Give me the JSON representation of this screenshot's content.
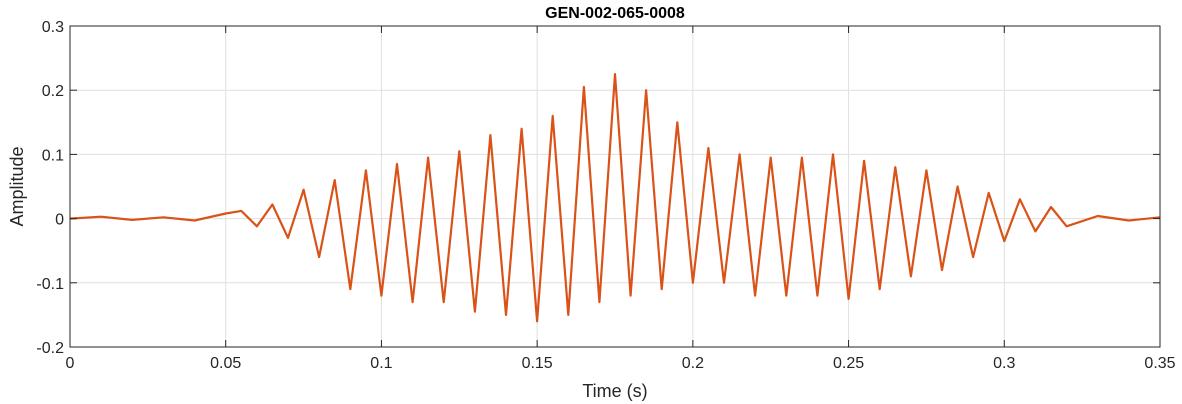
{
  "chart_data": {
    "type": "line",
    "title": "GEN-002-065-0008",
    "xlabel": "Time (s)",
    "ylabel": "Amplitude",
    "xlim": [
      0,
      0.35
    ],
    "ylim": [
      -0.2,
      0.3
    ],
    "xticks": [
      0,
      0.05,
      0.1,
      0.15,
      0.2,
      0.25,
      0.3,
      0.35
    ],
    "xtick_labels": [
      "0",
      "0.05",
      "0.1",
      "0.15",
      "0.2",
      "0.25",
      "0.3",
      "0.35"
    ],
    "yticks": [
      -0.2,
      -0.1,
      0,
      0.1,
      0.2,
      0.3
    ],
    "ytick_labels": [
      "-0.2",
      "-0.1",
      "0",
      "0.1",
      "0.2",
      "0.3"
    ],
    "grid": true,
    "line_color": "#D95319",
    "series": [
      {
        "values": [
          [
            0,
            0
          ],
          [
            0.01,
            0.003
          ],
          [
            0.02,
            -0.002
          ],
          [
            0.03,
            0.002
          ],
          [
            0.04,
            -0.003
          ],
          [
            0.05,
            0.008
          ],
          [
            0.055,
            0.012
          ],
          [
            0.06,
            -0.012
          ],
          [
            0.065,
            0.022
          ],
          [
            0.07,
            -0.03
          ],
          [
            0.075,
            0.045
          ],
          [
            0.08,
            -0.06
          ],
          [
            0.085,
            0.06
          ],
          [
            0.09,
            -0.11
          ],
          [
            0.095,
            0.075
          ],
          [
            0.1,
            -0.12
          ],
          [
            0.105,
            0.085
          ],
          [
            0.11,
            -0.13
          ],
          [
            0.115,
            0.095
          ],
          [
            0.12,
            -0.13
          ],
          [
            0.125,
            0.105
          ],
          [
            0.13,
            -0.145
          ],
          [
            0.135,
            0.13
          ],
          [
            0.14,
            -0.15
          ],
          [
            0.145,
            0.14
          ],
          [
            0.15,
            -0.16
          ],
          [
            0.155,
            0.16
          ],
          [
            0.16,
            -0.15
          ],
          [
            0.165,
            0.205
          ],
          [
            0.17,
            -0.13
          ],
          [
            0.175,
            0.225
          ],
          [
            0.18,
            -0.12
          ],
          [
            0.185,
            0.2
          ],
          [
            0.19,
            -0.11
          ],
          [
            0.195,
            0.15
          ],
          [
            0.2,
            -0.1
          ],
          [
            0.205,
            0.11
          ],
          [
            0.21,
            -0.1
          ],
          [
            0.215,
            0.1
          ],
          [
            0.22,
            -0.12
          ],
          [
            0.225,
            0.095
          ],
          [
            0.23,
            -0.12
          ],
          [
            0.235,
            0.095
          ],
          [
            0.24,
            -0.12
          ],
          [
            0.245,
            0.1
          ],
          [
            0.25,
            -0.125
          ],
          [
            0.255,
            0.09
          ],
          [
            0.26,
            -0.11
          ],
          [
            0.265,
            0.08
          ],
          [
            0.27,
            -0.09
          ],
          [
            0.275,
            0.075
          ],
          [
            0.28,
            -0.08
          ],
          [
            0.285,
            0.05
          ],
          [
            0.29,
            -0.06
          ],
          [
            0.295,
            0.04
          ],
          [
            0.3,
            -0.035
          ],
          [
            0.305,
            0.03
          ],
          [
            0.31,
            -0.02
          ],
          [
            0.315,
            0.018
          ],
          [
            0.32,
            -0.012
          ],
          [
            0.33,
            0.004
          ],
          [
            0.34,
            -0.003
          ],
          [
            0.35,
            0.002
          ]
        ]
      }
    ]
  }
}
